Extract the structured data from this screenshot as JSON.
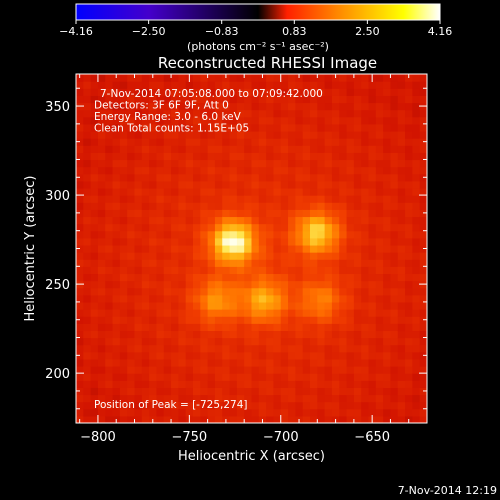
{
  "chart_data": {
    "type": "heatmap",
    "title": "Reconstructed RHESSI Image",
    "xlabel": "Heliocentric X (arcsec)",
    "ylabel": "Heliocentric Y (arcsec)",
    "xlim": [
      -812,
      -620
    ],
    "ylim": [
      172,
      368
    ],
    "x_ticks": [
      -800,
      -750,
      -700,
      -650
    ],
    "y_ticks": [
      200,
      250,
      300,
      350
    ],
    "x_tick_labels": [
      "−800",
      "−750",
      "−700",
      "−650"
    ],
    "y_tick_labels": [
      "200",
      "250",
      "300",
      "350"
    ],
    "colorbar": {
      "min": -4.16,
      "max": 4.16,
      "tick_values": [
        -4.16,
        -2.5,
        -0.83,
        0.83,
        2.5,
        4.16
      ],
      "tick_labels": [
        "−4.16",
        "−2.50",
        "−0.83",
        "0.83",
        "2.50",
        "4.16"
      ],
      "units_label": "(photons cm⁻² s⁻¹ asec⁻²)",
      "colors": [
        "#0000ff",
        "#4400cc",
        "#000000",
        "#ff2000",
        "#ff8800",
        "#ffff00",
        "#ffffff"
      ]
    },
    "background_level": 1.3,
    "sources": [
      {
        "x": -726,
        "y": 274,
        "peak": 4.16
      },
      {
        "x": -680,
        "y": 279,
        "peak": 3.5
      },
      {
        "x": -735,
        "y": 241,
        "peak": 2.7
      },
      {
        "x": -709,
        "y": 241,
        "peak": 3.0
      },
      {
        "x": -678,
        "y": 241,
        "peak": 2.5
      }
    ],
    "info_lines": [
      "7-Nov-2014 07:05:08.000 to 07:09:42.000",
      "Detectors: 3F 6F 9F, Att 0",
      "Energy Range: 3.0 - 6.0 keV",
      "Clean     Total counts: 1.15E+05"
    ],
    "peak_label": "Position of Peak = [-725,274]",
    "grid": false,
    "legend": "none"
  },
  "footer": {
    "timestamp": "7-Nov-2014 12:19"
  }
}
